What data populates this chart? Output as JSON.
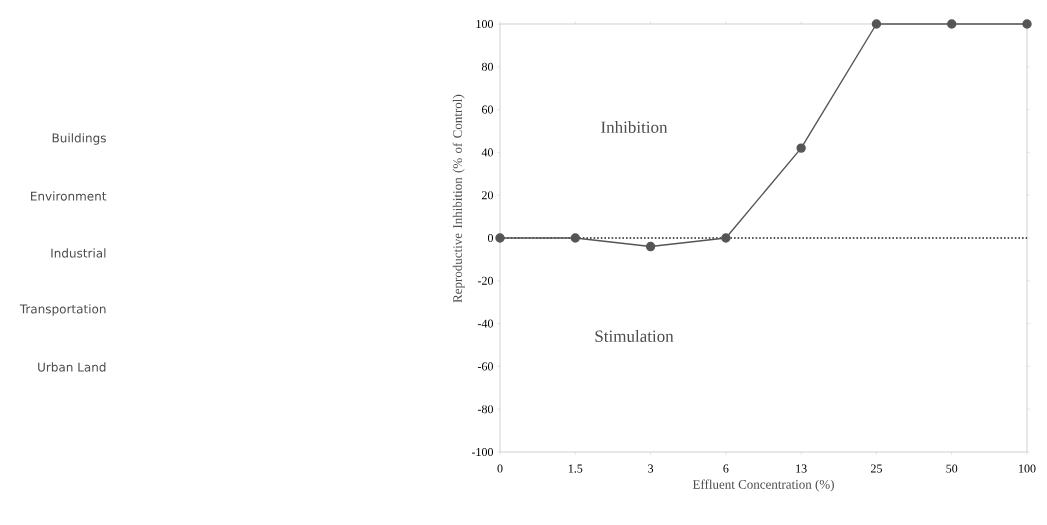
{
  "chart_data": {
    "type": "line",
    "xlabel": "Effluent Concentration (%)",
    "ylabel": "Reproductive Inhibition (% of Control)",
    "categories": [
      "0",
      "1.5",
      "3",
      "6",
      "13",
      "25",
      "50",
      "100"
    ],
    "series": [
      {
        "color": "#555555",
        "values": [
          0,
          0,
          -4,
          0,
          42,
          100,
          100,
          100
        ]
      }
    ],
    "ylim": [
      -100,
      100
    ],
    "yticks": [
      -100,
      -80,
      -60,
      -40,
      -20,
      0,
      20,
      40,
      60,
      80,
      100
    ],
    "ref_lines": [
      {
        "axis": "y",
        "value": 0,
        "line_style": "dotted",
        "color": "#222222"
      }
    ],
    "marker": "circle",
    "line_style": "solid",
    "grid": false,
    "annotations": [
      "Buildings",
      "Environment",
      "Industrial",
      "Transportation",
      "Urban Land",
      "Inhibition",
      "Stimulation"
    ]
  }
}
